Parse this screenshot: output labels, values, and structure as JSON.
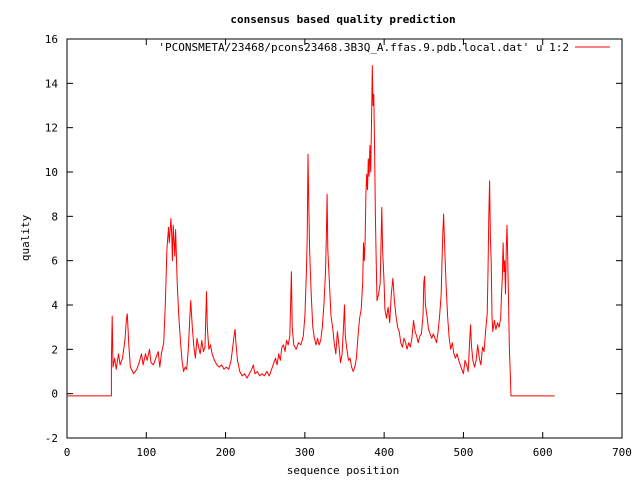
{
  "chart_data": {
    "type": "line",
    "title": "consensus based quality prediction",
    "xlabel": "sequence position",
    "ylabel": "quality",
    "xlim": [
      0,
      700
    ],
    "ylim": [
      -2,
      16
    ],
    "xticks": [
      0,
      100,
      200,
      300,
      400,
      500,
      600,
      700
    ],
    "yticks": [
      -2,
      0,
      2,
      4,
      6,
      8,
      10,
      12,
      14,
      16
    ],
    "grid": false,
    "legend": "top-right",
    "series": [
      {
        "name": "'PCONSMETA/23468/pcons23468.3B3Q_A.ffas.9.pdb.local.dat' u 1:2",
        "color": "#ff0000",
        "points": [
          [
            0,
            -0.1
          ],
          [
            56,
            -0.1
          ],
          [
            56,
            1.5
          ],
          [
            57,
            3.5
          ],
          [
            58,
            1.2
          ],
          [
            60,
            1.6
          ],
          [
            62,
            1.1
          ],
          [
            65,
            1.8
          ],
          [
            67,
            1.3
          ],
          [
            70,
            1.6
          ],
          [
            73,
            2.4
          ],
          [
            75,
            3.4
          ],
          [
            76,
            3.6
          ],
          [
            78,
            2.2
          ],
          [
            80,
            1.2
          ],
          [
            84,
            0.9
          ],
          [
            88,
            1.1
          ],
          [
            91,
            1.4
          ],
          [
            94,
            1.8
          ],
          [
            96,
            1.3
          ],
          [
            99,
            1.8
          ],
          [
            101,
            1.5
          ],
          [
            104,
            2.0
          ],
          [
            106,
            1.4
          ],
          [
            109,
            1.3
          ],
          [
            112,
            1.6
          ],
          [
            115,
            1.9
          ],
          [
            117,
            1.2
          ],
          [
            119,
            1.8
          ],
          [
            122,
            2.3
          ],
          [
            124,
            4.0
          ],
          [
            126,
            6.5
          ],
          [
            128,
            7.5
          ],
          [
            129,
            6.8
          ],
          [
            131,
            7.9
          ],
          [
            132,
            7.2
          ],
          [
            133,
            6.0
          ],
          [
            134,
            7.6
          ],
          [
            136,
            6.2
          ],
          [
            137,
            7.4
          ],
          [
            139,
            5.0
          ],
          [
            141,
            3.5
          ],
          [
            143,
            2.4
          ],
          [
            145,
            1.5
          ],
          [
            147,
            1.0
          ],
          [
            149,
            1.2
          ],
          [
            151,
            1.1
          ],
          [
            153,
            2.0
          ],
          [
            155,
            3.5
          ],
          [
            156,
            4.2
          ],
          [
            158,
            3.0
          ],
          [
            160,
            2.1
          ],
          [
            162,
            1.6
          ],
          [
            164,
            2.5
          ],
          [
            166,
            2.1
          ],
          [
            168,
            1.8
          ],
          [
            170,
            2.4
          ],
          [
            172,
            1.9
          ],
          [
            174,
            2.1
          ],
          [
            175,
            3.5
          ],
          [
            176,
            4.6
          ],
          [
            177,
            3.0
          ],
          [
            179,
            2.0
          ],
          [
            181,
            2.2
          ],
          [
            183,
            1.8
          ],
          [
            186,
            1.5
          ],
          [
            189,
            1.3
          ],
          [
            192,
            1.2
          ],
          [
            195,
            1.3
          ],
          [
            198,
            1.1
          ],
          [
            201,
            1.2
          ],
          [
            204,
            1.1
          ],
          [
            207,
            1.5
          ],
          [
            209,
            2.1
          ],
          [
            211,
            2.7
          ],
          [
            212,
            2.9
          ],
          [
            213,
            2.3
          ],
          [
            215,
            1.5
          ],
          [
            218,
            1.0
          ],
          [
            221,
            0.8
          ],
          [
            224,
            0.9
          ],
          [
            227,
            0.7
          ],
          [
            230,
            0.9
          ],
          [
            233,
            1.1
          ],
          [
            235,
            1.3
          ],
          [
            237,
            0.9
          ],
          [
            240,
            1.0
          ],
          [
            243,
            0.8
          ],
          [
            246,
            0.9
          ],
          [
            249,
            0.8
          ],
          [
            252,
            1.0
          ],
          [
            255,
            0.8
          ],
          [
            258,
            1.1
          ],
          [
            261,
            1.4
          ],
          [
            263,
            1.6
          ],
          [
            265,
            1.3
          ],
          [
            267,
            1.8
          ],
          [
            269,
            1.5
          ],
          [
            271,
            2.1
          ],
          [
            273,
            2.2
          ],
          [
            275,
            1.9
          ],
          [
            277,
            2.4
          ],
          [
            279,
            2.2
          ],
          [
            281,
            2.6
          ],
          [
            282,
            4.0
          ],
          [
            283,
            5.5
          ],
          [
            284,
            3.0
          ],
          [
            286,
            2.2
          ],
          [
            289,
            2.0
          ],
          [
            292,
            2.3
          ],
          [
            295,
            2.2
          ],
          [
            298,
            2.6
          ],
          [
            300,
            3.5
          ],
          [
            302,
            5.5
          ],
          [
            303,
            7.0
          ],
          [
            304,
            10.8
          ],
          [
            305,
            8.5
          ],
          [
            306,
            6.5
          ],
          [
            308,
            4.5
          ],
          [
            310,
            3.0
          ],
          [
            312,
            2.5
          ],
          [
            314,
            2.2
          ],
          [
            316,
            2.5
          ],
          [
            318,
            2.2
          ],
          [
            320,
            2.4
          ],
          [
            322,
            3.0
          ],
          [
            324,
            4.0
          ],
          [
            326,
            5.5
          ],
          [
            327,
            7.0
          ],
          [
            328,
            9.0
          ],
          [
            329,
            6.5
          ],
          [
            331,
            5.0
          ],
          [
            333,
            3.5
          ],
          [
            335,
            3.0
          ],
          [
            337,
            2.3
          ],
          [
            339,
            1.8
          ],
          [
            341,
            2.8
          ],
          [
            343,
            2.2
          ],
          [
            345,
            1.4
          ],
          [
            347,
            1.8
          ],
          [
            349,
            3.2
          ],
          [
            350,
            4.0
          ],
          [
            351,
            2.6
          ],
          [
            353,
            2.0
          ],
          [
            355,
            1.5
          ],
          [
            357,
            1.6
          ],
          [
            359,
            1.2
          ],
          [
            361,
            1.0
          ],
          [
            363,
            1.2
          ],
          [
            365,
            1.6
          ],
          [
            367,
            2.6
          ],
          [
            369,
            3.4
          ],
          [
            371,
            3.8
          ],
          [
            373,
            5.0
          ],
          [
            374,
            6.8
          ],
          [
            375,
            6.0
          ],
          [
            376,
            6.9
          ],
          [
            377,
            9.0
          ],
          [
            378,
            9.9
          ],
          [
            379,
            9.2
          ],
          [
            380,
            10.6
          ],
          [
            381,
            9.8
          ],
          [
            382,
            11.2
          ],
          [
            383,
            10.0
          ],
          [
            384,
            12.2
          ],
          [
            385,
            14.8
          ],
          [
            386,
            13.0
          ],
          [
            387,
            13.5
          ],
          [
            388,
            11.0
          ],
          [
            389,
            8.0
          ],
          [
            390,
            6.0
          ],
          [
            391,
            4.2
          ],
          [
            393,
            4.5
          ],
          [
            395,
            5.0
          ],
          [
            397,
            8.4
          ],
          [
            398,
            6.5
          ],
          [
            400,
            5.0
          ],
          [
            401,
            3.8
          ],
          [
            403,
            3.4
          ],
          [
            405,
            3.9
          ],
          [
            407,
            3.2
          ],
          [
            409,
            4.5
          ],
          [
            411,
            5.2
          ],
          [
            413,
            4.2
          ],
          [
            415,
            3.5
          ],
          [
            417,
            3.0
          ],
          [
            419,
            2.8
          ],
          [
            421,
            2.3
          ],
          [
            423,
            2.1
          ],
          [
            425,
            2.5
          ],
          [
            427,
            2.3
          ],
          [
            429,
            2.0
          ],
          [
            431,
            2.3
          ],
          [
            433,
            2.1
          ],
          [
            435,
            2.5
          ],
          [
            437,
            3.3
          ],
          [
            439,
            2.8
          ],
          [
            441,
            2.6
          ],
          [
            443,
            2.3
          ],
          [
            445,
            2.6
          ],
          [
            447,
            2.7
          ],
          [
            449,
            3.5
          ],
          [
            450,
            5.0
          ],
          [
            451,
            5.3
          ],
          [
            452,
            4.0
          ],
          [
            454,
            3.5
          ],
          [
            456,
            2.9
          ],
          [
            458,
            2.7
          ],
          [
            460,
            2.5
          ],
          [
            462,
            2.7
          ],
          [
            464,
            2.5
          ],
          [
            466,
            2.3
          ],
          [
            468,
            2.8
          ],
          [
            470,
            3.5
          ],
          [
            472,
            4.5
          ],
          [
            473,
            6.0
          ],
          [
            474,
            7.2
          ],
          [
            475,
            8.1
          ],
          [
            476,
            7.0
          ],
          [
            478,
            5.0
          ],
          [
            480,
            3.5
          ],
          [
            482,
            2.5
          ],
          [
            484,
            2.0
          ],
          [
            486,
            2.3
          ],
          [
            488,
            1.8
          ],
          [
            490,
            1.6
          ],
          [
            492,
            1.8
          ],
          [
            494,
            1.5
          ],
          [
            496,
            1.3
          ],
          [
            498,
            1.1
          ],
          [
            500,
            0.9
          ],
          [
            502,
            1.5
          ],
          [
            504,
            1.3
          ],
          [
            506,
            1.0
          ],
          [
            508,
            2.5
          ],
          [
            509,
            3.1
          ],
          [
            510,
            2.2
          ],
          [
            512,
            1.5
          ],
          [
            514,
            1.2
          ],
          [
            516,
            1.5
          ],
          [
            518,
            2.2
          ],
          [
            520,
            1.6
          ],
          [
            522,
            1.3
          ],
          [
            524,
            2.1
          ],
          [
            526,
            1.9
          ],
          [
            528,
            2.8
          ],
          [
            530,
            3.6
          ],
          [
            531,
            5.5
          ],
          [
            532,
            8.0
          ],
          [
            533,
            9.6
          ],
          [
            534,
            7.0
          ],
          [
            535,
            6.0
          ],
          [
            536,
            3.5
          ],
          [
            537,
            2.8
          ],
          [
            539,
            3.3
          ],
          [
            541,
            2.9
          ],
          [
            543,
            3.2
          ],
          [
            545,
            3.0
          ],
          [
            547,
            3.4
          ],
          [
            548,
            4.5
          ],
          [
            549,
            5.2
          ],
          [
            550,
            6.8
          ],
          [
            551,
            5.5
          ],
          [
            552,
            6.0
          ],
          [
            553,
            4.5
          ],
          [
            554,
            6.4
          ],
          [
            555,
            7.6
          ],
          [
            556,
            6.0
          ],
          [
            557,
            4.0
          ],
          [
            558,
            2.0
          ],
          [
            559,
            1.0
          ],
          [
            560,
            -0.1
          ],
          [
            615,
            -0.1
          ]
        ]
      }
    ]
  }
}
